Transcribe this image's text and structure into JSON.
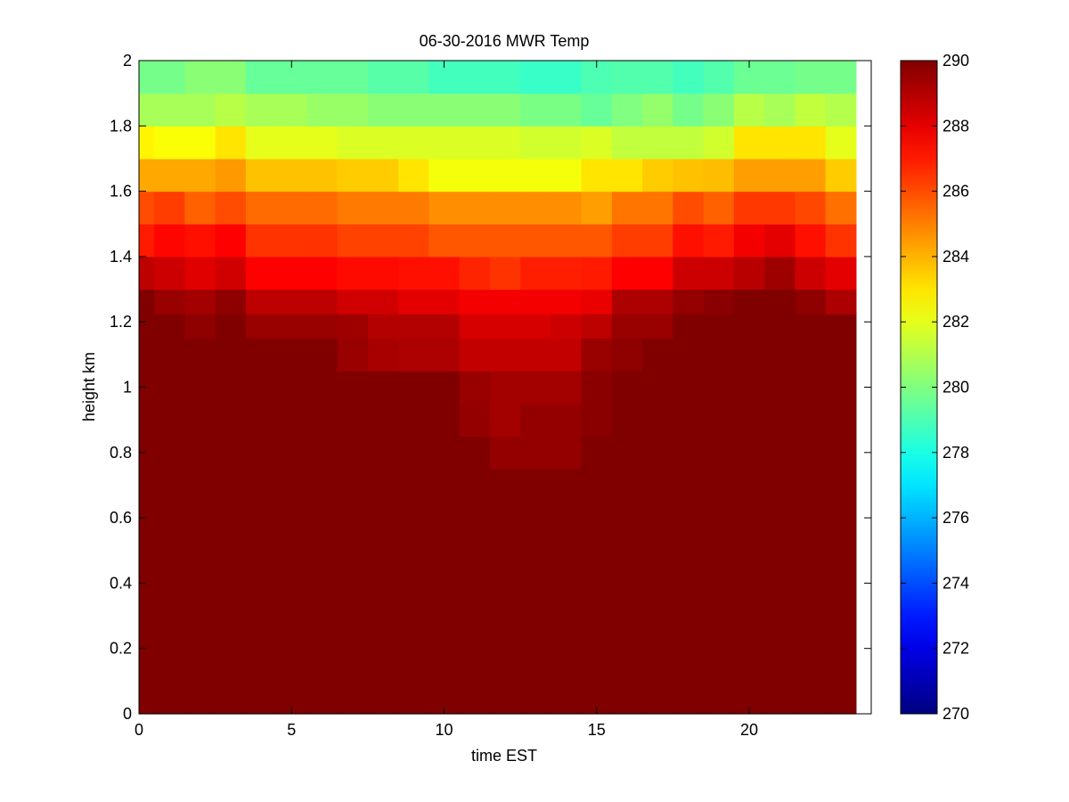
{
  "chart_data": {
    "type": "heatmap",
    "title": "06-30-2016 MWR Temp",
    "xlabel": "time EST",
    "ylabel": "height km",
    "xlim": [
      0,
      24
    ],
    "ylim": [
      0,
      2
    ],
    "x_ticks": [
      0,
      5,
      10,
      15,
      20
    ],
    "y_ticks": [
      0,
      0.2,
      0.4,
      0.6,
      0.8,
      1,
      1.2,
      1.4,
      1.6,
      1.8,
      2
    ],
    "grid": false,
    "colormap": "jet",
    "colorbar": {
      "clim": [
        270,
        290
      ],
      "ticks": [
        270,
        272,
        274,
        276,
        278,
        280,
        282,
        284,
        286,
        288,
        290
      ],
      "placement": "right"
    },
    "x": [
      0,
      1,
      2,
      3,
      4,
      5,
      6,
      7,
      8,
      9,
      10,
      11,
      12,
      13,
      14,
      15,
      16,
      17,
      18,
      19,
      20,
      21,
      22,
      23
    ],
    "y": [
      0,
      0.1,
      0.2,
      0.3,
      0.4,
      0.5,
      0.6,
      0.7,
      0.8,
      0.9,
      1.0,
      1.1,
      1.2,
      1.25,
      1.35,
      1.45,
      1.55,
      1.65,
      1.75,
      1.85,
      1.95
    ],
    "z_note": "rows are heights (from y[0] upward), columns are times",
    "z": [
      [
        290,
        290,
        290,
        290,
        290,
        290,
        290,
        290,
        290,
        290,
        290,
        290,
        290,
        290,
        290,
        290,
        290,
        290,
        290,
        290,
        290,
        290,
        290,
        290
      ],
      [
        290,
        290,
        290,
        290,
        290,
        290,
        290,
        290,
        290,
        290,
        290,
        290,
        290,
        290,
        290,
        290,
        290,
        290,
        290,
        290,
        290,
        290,
        290,
        290
      ],
      [
        290,
        290,
        290,
        290,
        290,
        290,
        290,
        290,
        290,
        290,
        290,
        290,
        290,
        290,
        290,
        290,
        290,
        290,
        290,
        290,
        290,
        290,
        290,
        290
      ],
      [
        290,
        290,
        290,
        290,
        290,
        290,
        290,
        290,
        290,
        290,
        290,
        290,
        290,
        290,
        290,
        290,
        290,
        290,
        290,
        290,
        290,
        290,
        290,
        290
      ],
      [
        290,
        290,
        290,
        290,
        290,
        290,
        290,
        290,
        290,
        290,
        290,
        290,
        290,
        290,
        290,
        290,
        290,
        290,
        290,
        290,
        290,
        290,
        290,
        290
      ],
      [
        290,
        290,
        290,
        290,
        290,
        290,
        290,
        290,
        290,
        290,
        290,
        290,
        290,
        290,
        290,
        290,
        290,
        290,
        290,
        290,
        290,
        290,
        290,
        290
      ],
      [
        290,
        290,
        290,
        290,
        290,
        290,
        290,
        290,
        290,
        290,
        290,
        290,
        290,
        290,
        290,
        290,
        290,
        290,
        290,
        290,
        290,
        290,
        290,
        290
      ],
      [
        290,
        290,
        290,
        290,
        290,
        290,
        290,
        290,
        290,
        290,
        290,
        290,
        290,
        290,
        290,
        290,
        290,
        290,
        290,
        290,
        290,
        290,
        290,
        290
      ],
      [
        290,
        290,
        290,
        290,
        290,
        290,
        290,
        290,
        290,
        290,
        290,
        290,
        289.6,
        289.6,
        289.6,
        290,
        290,
        290,
        290,
        290,
        290,
        290,
        290,
        290
      ],
      [
        290,
        290,
        290,
        290,
        290,
        290,
        290,
        290,
        290,
        290,
        290,
        289.6,
        289.3,
        289.6,
        289.6,
        289.8,
        290,
        290,
        290,
        290,
        290,
        290,
        290,
        290
      ],
      [
        290,
        290,
        290,
        290,
        290,
        290,
        290,
        290,
        290,
        290,
        290,
        289.5,
        289.3,
        289.3,
        289.3,
        289.8,
        290,
        290,
        290,
        290,
        290,
        290,
        290,
        290
      ],
      [
        290,
        290,
        290,
        290,
        290,
        290,
        290,
        289.5,
        289.2,
        289.1,
        289.1,
        288.7,
        288.7,
        288.7,
        288.7,
        289.5,
        289.7,
        290,
        290,
        290,
        290,
        290,
        290,
        290
      ],
      [
        290,
        290,
        289.7,
        290,
        289.5,
        289.5,
        289.5,
        289.4,
        289,
        289,
        289,
        288.3,
        288.3,
        288.3,
        288.5,
        288.8,
        289.5,
        289.5,
        290,
        290,
        290,
        290,
        290,
        290
      ],
      [
        290,
        289.5,
        289.3,
        289.7,
        288.8,
        288.8,
        288.8,
        288.4,
        288.4,
        288,
        288,
        287.7,
        287.7,
        287.7,
        287.7,
        287.9,
        289.1,
        289.1,
        289.6,
        289.8,
        290,
        290,
        289.7,
        289.1
      ],
      [
        288.8,
        288.5,
        288.1,
        288.4,
        287.5,
        287.5,
        287.5,
        287.3,
        287.3,
        287.2,
        287.2,
        286.8,
        286.5,
        286.9,
        286.9,
        287,
        287.5,
        287.5,
        288.5,
        288.5,
        288.9,
        289.4,
        288.5,
        288
      ],
      [
        287,
        287.4,
        287.2,
        287.5,
        286.5,
        286.5,
        286.5,
        286.2,
        286.2,
        286.2,
        285.8,
        285.8,
        285.8,
        285.8,
        285.8,
        285.8,
        286.3,
        286.3,
        287.2,
        287,
        287.7,
        288,
        287.2,
        286.5
      ],
      [
        286,
        286.3,
        285.6,
        286,
        285.4,
        285.4,
        285.4,
        285.1,
        285.1,
        285.1,
        284.7,
        284.7,
        284.7,
        284.7,
        284.7,
        284.4,
        285.2,
        285.2,
        286,
        285.6,
        286.4,
        286.4,
        286.1,
        285.3
      ],
      [
        284.2,
        284.2,
        284.2,
        284.5,
        283.7,
        283.7,
        283.7,
        283.5,
        283.5,
        283,
        282.3,
        282.3,
        282.3,
        282.3,
        282.3,
        283,
        283,
        283.5,
        283.7,
        283.8,
        284.4,
        284.4,
        284.4,
        283.5
      ],
      [
        282.7,
        282.4,
        282.4,
        283,
        282,
        282,
        282,
        281.8,
        281.8,
        281.8,
        281.8,
        281.8,
        281.8,
        281.6,
        281.6,
        281.8,
        281.3,
        281.3,
        281.3,
        281.6,
        283,
        283,
        283,
        282
      ],
      [
        280.8,
        280.8,
        280.8,
        281.1,
        280.8,
        280.8,
        280.5,
        280.5,
        280.2,
        280.2,
        280.2,
        280.2,
        280.2,
        279.9,
        279.9,
        279.5,
        280,
        280.4,
        279.8,
        280.2,
        281.1,
        280.8,
        281.3,
        281
      ],
      [
        279.8,
        279.8,
        280.2,
        280.2,
        279.5,
        279.5,
        279.5,
        279.5,
        279.2,
        279.2,
        278.8,
        278.8,
        278.8,
        278.6,
        278.6,
        279,
        279.1,
        279.1,
        278.8,
        279.1,
        279.6,
        279.6,
        279.8,
        279.8
      ]
    ]
  }
}
